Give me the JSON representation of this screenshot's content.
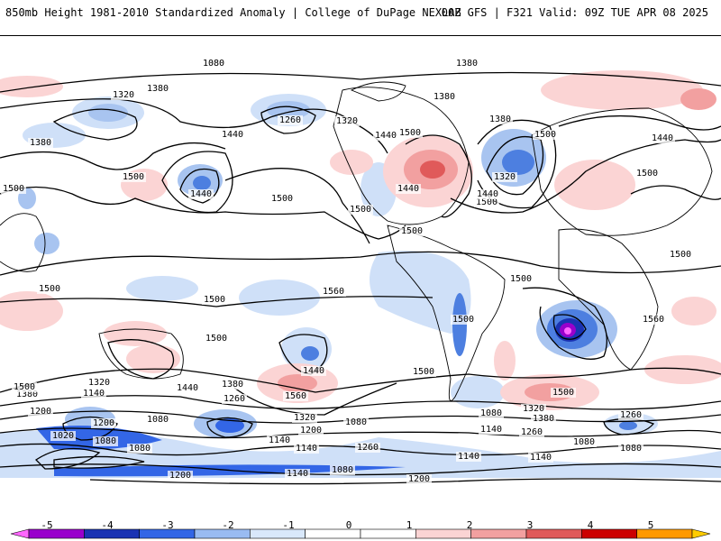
{
  "header": {
    "title_left": "850mb Height 1981-2010 Standardized Anomaly | College of DuPage NEXLAB",
    "title_right": "00Z GFS | F321 Valid: 09Z TUE APR 08 2025"
  },
  "map": {
    "contour_labels": [
      "1380",
      "1380",
      "1320",
      "1380",
      "1260",
      "1320",
      "1380",
      "1440",
      "1380",
      "1500",
      "1440",
      "1500",
      "1440",
      "1500",
      "1440",
      "1500",
      "1380",
      "1500",
      "1500",
      "1440",
      "1500",
      "1500",
      "1320",
      "1440",
      "1500",
      "1500",
      "1500",
      "1560",
      "1500",
      "1500",
      "1500",
      "1560",
      "1500",
      "1440",
      "1500",
      "1500",
      "1380",
      "1320",
      "1440",
      "1380",
      "1260",
      "1560",
      "1500",
      "1200",
      "1140",
      "1080",
      "1320",
      "1080",
      "1140",
      "1200",
      "1080",
      "1320",
      "1380",
      "1260",
      "1140",
      "1200",
      "1080",
      "1020",
      "1080",
      "1260",
      "1140",
      "1080",
      "1140",
      "1260",
      "1080",
      "1140",
      "1200",
      "1080",
      "1200",
      "1140",
      "1080"
    ]
  },
  "colorbar": {
    "ticks": [
      "-5",
      "-4",
      "-3",
      "-2",
      "-1",
      "0",
      "1",
      "2",
      "3",
      "4",
      "5"
    ],
    "colors": [
      "#ff66ff",
      "#9900cc",
      "#1a33b3",
      "#3366e6",
      "#99bbf2",
      "#d9e8fb",
      "#ffffff",
      "#ffffff",
      "#fbd4d4",
      "#f2a0a0",
      "#e05a5a",
      "#cc0000",
      "#ff9900",
      "#ffcc00"
    ]
  }
}
